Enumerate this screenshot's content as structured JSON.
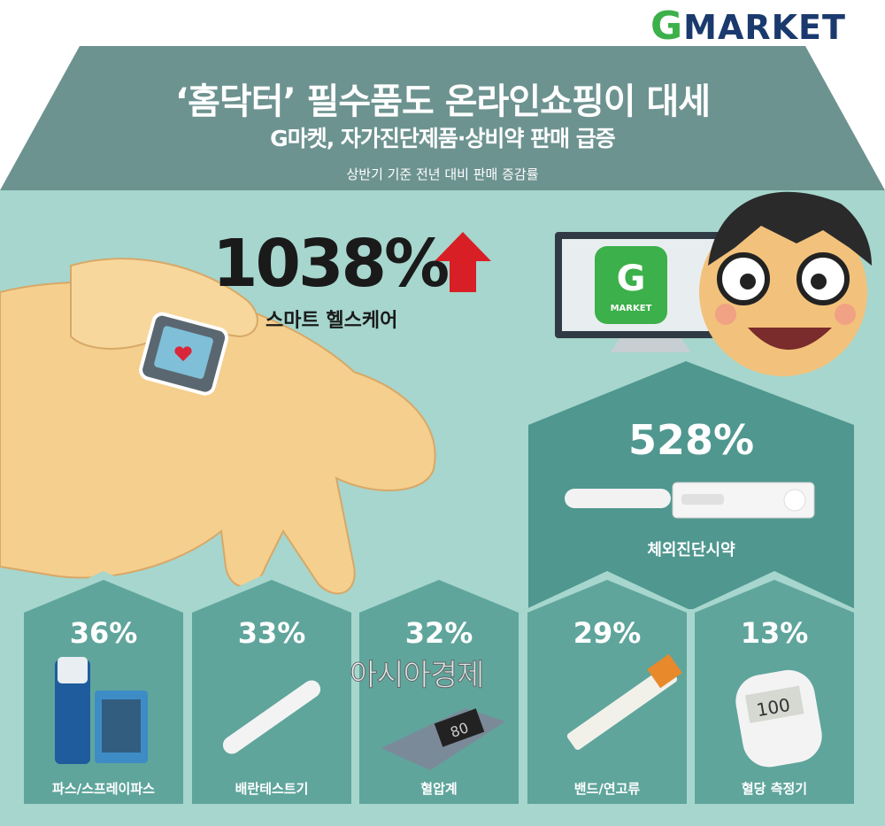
{
  "brand": {
    "logo_text": "Gmarket"
  },
  "header": {
    "title": "‘홈닥터’ 필수품도 온라인쇼핑이 대세",
    "subtitle": "G마켓, 자가진단제품·상비약 판매 급증",
    "caption": "상반기 기준 전년 대비 판매 증감률"
  },
  "colors": {
    "roof": "#6d9390",
    "background": "#a6d6cd",
    "panel": "#5fa59c",
    "panel_dark": "#4f978f",
    "arrow": "#d91f26"
  },
  "highlight": {
    "value": "1038%",
    "label": "스마트 헬스케어",
    "trend_icon": "up-arrow-icon"
  },
  "monitor": {
    "app_letter": "G",
    "app_text": "MARKET"
  },
  "featured": {
    "value": "528%",
    "label": "체외진단시약"
  },
  "items": [
    {
      "value": "36%",
      "label": "파스/스프레이파스"
    },
    {
      "value": "33%",
      "label": "배란테스트기"
    },
    {
      "value": "32%",
      "label": "혈압계"
    },
    {
      "value": "29%",
      "label": "밴드/연고류"
    },
    {
      "value": "13%",
      "label": "혈당 측정기"
    }
  ],
  "devices": {
    "bp_reading": "80",
    "glucose_reading": "100"
  },
  "watermark": "아시아경제"
}
